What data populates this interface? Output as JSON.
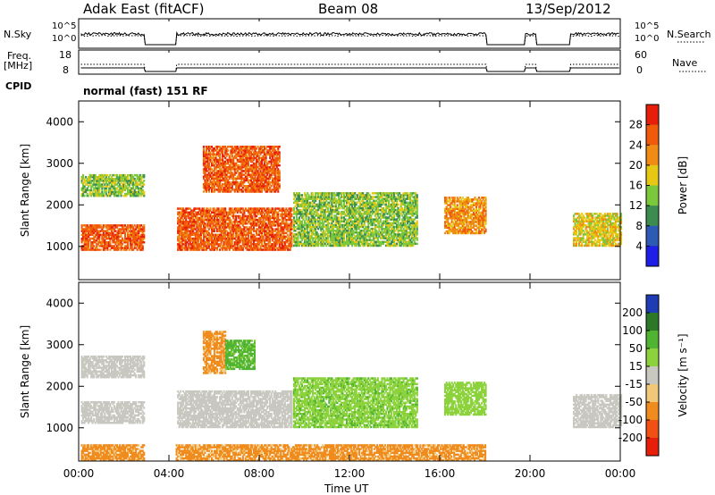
{
  "header": {
    "station": "Adak East (fitACF)",
    "beam": "Beam 08",
    "date": "13/Sep/2012"
  },
  "top_panels": {
    "nsky_label": "N.Sky",
    "nsearch_label": "N.Search",
    "noise_ticks_left": [
      "10^5",
      "10^0"
    ],
    "noise_ticks_right": [
      "10^5",
      "10^0"
    ],
    "freq_label": "Freq.",
    "freq_unit": "[MHz]",
    "freq_ticks": [
      "18",
      "8"
    ],
    "nave_label": "Nave",
    "nave_ticks": [
      "60",
      "0"
    ],
    "cpid_label": "CPID",
    "cpid_value": "normal (fast) 151 RF"
  },
  "x_axis": {
    "label": "Time UT",
    "ticks": [
      "00:00",
      "04:00",
      "08:00",
      "12:00",
      "16:00",
      "20:00",
      "00:00"
    ]
  },
  "chart_data": [
    {
      "type": "heatmap",
      "parameter": "Power",
      "ylabel": "Slant Range [km]",
      "yticks": [
        1000,
        2000,
        3000,
        4000
      ],
      "ylim": [
        200,
        4500
      ],
      "xlim_hours": [
        0,
        24
      ],
      "colorbar": {
        "label": "Power [dB]",
        "ticks": [
          "4",
          "8",
          "12",
          "16",
          "20",
          "24",
          "28"
        ],
        "colors": [
          "#1e1ee6",
          "#2d5ab4",
          "#3c8c50",
          "#7cc83c",
          "#e6c814",
          "#f08c14",
          "#f05a0a",
          "#e61e0a"
        ]
      },
      "data_gaps_hours": [
        [
          2.9,
          4.3
        ],
        [
          18.1,
          19.8
        ],
        [
          20.3,
          21.8
        ]
      ],
      "echo_regions": [
        {
          "t": [
            0.1,
            2.9
          ],
          "r": [
            900,
            1500
          ],
          "level": 27
        },
        {
          "t": [
            0.1,
            2.9
          ],
          "r": [
            2200,
            2700
          ],
          "level": 14
        },
        {
          "t": [
            4.3,
            9.4
          ],
          "r": [
            900,
            1900
          ],
          "level": 28
        },
        {
          "t": [
            5.5,
            8.9
          ],
          "r": [
            2300,
            3400
          ],
          "level": 26
        },
        {
          "t": [
            9.5,
            15.0
          ],
          "r": [
            1000,
            2300
          ],
          "level": 12
        },
        {
          "t": [
            16.2,
            18.0
          ],
          "r": [
            1300,
            2200
          ],
          "level": 22
        },
        {
          "t": [
            21.9,
            24.0
          ],
          "r": [
            1000,
            1800
          ],
          "level": 18
        }
      ]
    },
    {
      "type": "heatmap",
      "parameter": "Velocity",
      "ylabel": "Slant Range [km]",
      "yticks": [
        1000,
        2000,
        3000,
        4000
      ],
      "ylim": [
        200,
        4500
      ],
      "xlim_hours": [
        0,
        24
      ],
      "colorbar": {
        "label": "Velocity [m s⁻¹]",
        "ticks": [
          "200",
          "100",
          "50",
          "15",
          "-15",
          "-50",
          "-100",
          "-200"
        ],
        "colors": [
          "#1e3cb4",
          "#2d7828",
          "#50b432",
          "#8cd23c",
          "#c8c8c0",
          "#f0c878",
          "#f08c1e",
          "#f05014",
          "#e61e0a"
        ]
      },
      "data_gaps_hours": [
        [
          2.9,
          4.3
        ],
        [
          18.1,
          19.8
        ],
        [
          20.3,
          21.8
        ]
      ],
      "echo_regions": [
        {
          "t": [
            0.1,
            2.9
          ],
          "r": [
            1100,
            1600
          ],
          "level": 0
        },
        {
          "t": [
            0.1,
            2.9
          ],
          "r": [
            2200,
            2700
          ],
          "level": 0
        },
        {
          "t": [
            4.3,
            9.4
          ],
          "r": [
            1000,
            1900
          ],
          "level": 0
        },
        {
          "t": [
            5.5,
            6.5
          ],
          "r": [
            2300,
            3300
          ],
          "level": -60
        },
        {
          "t": [
            6.5,
            7.8
          ],
          "r": [
            2400,
            3100
          ],
          "level": 60
        },
        {
          "t": [
            9.5,
            15.0
          ],
          "r": [
            1000,
            2200
          ],
          "level": 40
        },
        {
          "t": [
            16.2,
            18.0
          ],
          "r": [
            1300,
            2100
          ],
          "level": 30
        },
        {
          "t": [
            21.9,
            24.0
          ],
          "r": [
            1000,
            1800
          ],
          "level": 0
        },
        {
          "t": [
            0.1,
            18.0
          ],
          "r": [
            200,
            600
          ],
          "level": -60
        }
      ]
    }
  ]
}
